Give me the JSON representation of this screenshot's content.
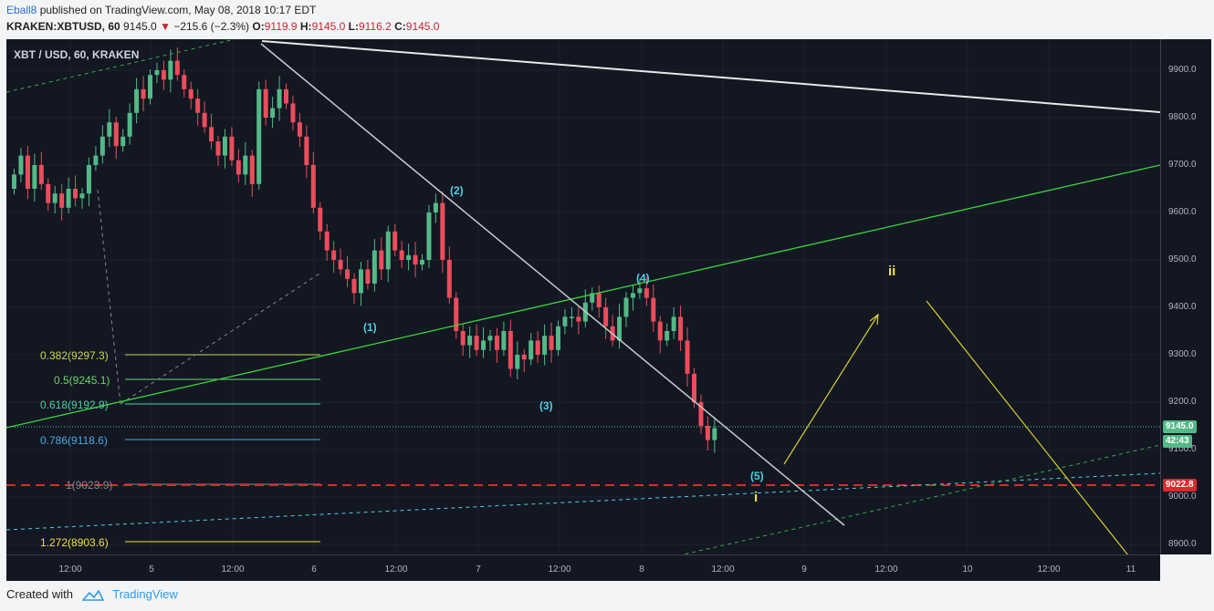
{
  "header": {
    "author": "Eball8",
    "published": "published on TradingView.com, May 08, 2018 10:17 EDT",
    "symbol": "KRAKEN:XBTUSD, 60",
    "price": "9145.0",
    "change": "−215.6 (−2.3%)",
    "open_label": "O:",
    "open": "9119.9",
    "high_label": "H:",
    "high": "9145.0",
    "low_label": "L:",
    "low": "9116.2",
    "close_label": "C:",
    "close": "9145.0"
  },
  "chart_title": "XBT / USD, 60, KRAKEN",
  "y_axis": [
    "9900.0",
    "9800.0",
    "9700.0",
    "9600.0",
    "9500.0",
    "9400.0",
    "9300.0",
    "9200.0",
    "9100.0",
    "9000.0",
    "8900.0"
  ],
  "x_axis": [
    "12:00",
    "5",
    "12:00",
    "6",
    "12:00",
    "7",
    "12:00",
    "8",
    "12:00",
    "9",
    "12:00",
    "10",
    "12:00",
    "11"
  ],
  "price_labels": {
    "last": "9145.0",
    "countdown": "42:43",
    "support": "9022.8"
  },
  "fib_levels": [
    {
      "label": "0.382(9297.3)",
      "color": "#c8d84a"
    },
    {
      "label": "0.5(9245.1)",
      "color": "#6dd36d"
    },
    {
      "label": "0.618(9192.9)",
      "color": "#4ecfa3"
    },
    {
      "label": "0.786(9118.6)",
      "color": "#4aa8e0"
    },
    {
      "label": "1(9023.9)",
      "color": "#888888"
    },
    {
      "label": "1.272(8903.6)",
      "color": "#f0e040"
    }
  ],
  "wave_labels": [
    "(1)",
    "(2)",
    "(3)",
    "(4)",
    "(5)"
  ],
  "projection_labels": [
    "i",
    "ii"
  ],
  "colors": {
    "up": "#53b987",
    "down": "#eb4d5c",
    "background": "#131722"
  },
  "footer": {
    "created_with": "Created with",
    "brand": "TradingView"
  },
  "chart_data": {
    "type": "candlestick",
    "title": "XBT / USD, 60, KRAKEN",
    "ylim": [
      8880,
      9960
    ],
    "last_price": 9145.0,
    "support_level": 9022.8,
    "fib_retracement": [
      9297.3,
      9245.1,
      9192.9,
      9118.6,
      9023.9,
      8903.6
    ]
  }
}
